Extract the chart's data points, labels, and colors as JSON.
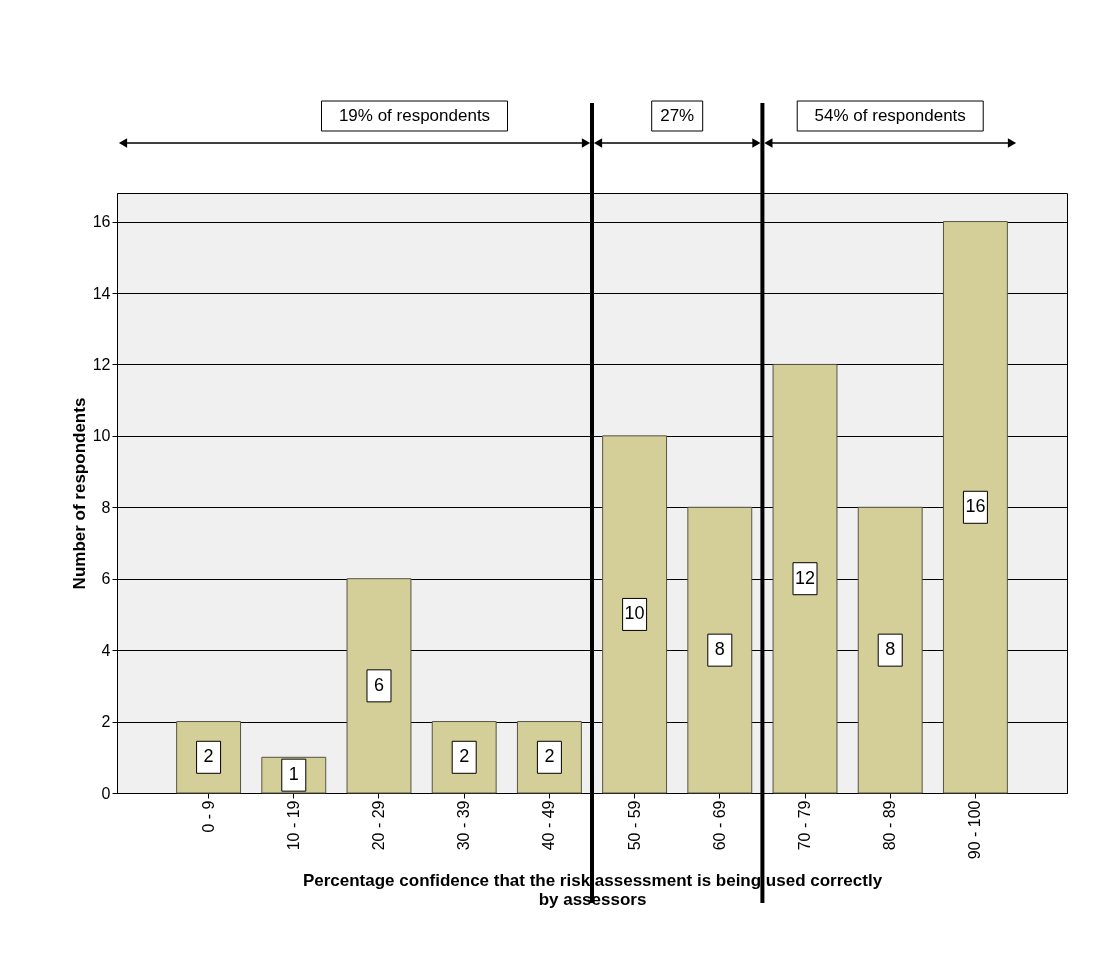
{
  "chart_data": {
    "type": "bar",
    "xlabel": "Percentage confidence that the risk assessment is being used correctly by assessors",
    "ylabel": "Number of respondents",
    "categories": [
      "0 - 9",
      "10 - 19",
      "20 - 29",
      "30 - 39",
      "40 - 49",
      "50 - 59",
      "60 - 69",
      "70 - 79",
      "80 - 89",
      "90 - 100"
    ],
    "values": [
      2,
      1,
      6,
      2,
      2,
      10,
      8,
      12,
      8,
      16
    ],
    "color": "#d4cf98",
    "data_labels": true,
    "ylim": [
      0,
      16.8
    ],
    "yticks": [
      0,
      2,
      4,
      6,
      8,
      10,
      12,
      14,
      16
    ],
    "grid": "y",
    "annotations": [
      "19% of respondents",
      "27%",
      "54% of respondents"
    ]
  }
}
